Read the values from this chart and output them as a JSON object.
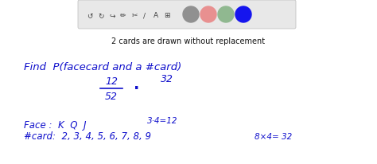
{
  "bg_color": "#ffffff",
  "toolbar_bg": "#e8e8e8",
  "text_color_black": "#111111",
  "text_color_blue": "#1010cc",
  "circle_colors": [
    "#909090",
    "#e89090",
    "#90b890",
    "#1515ee"
  ],
  "line1": "2 cards are drawn without replacement",
  "find_text": "Find  P(facecard and a #card)",
  "frac_num": "12",
  "frac_den": "52",
  "num32_text": "32",
  "dot_text": ".",
  "face_label": "Face :  K  Q  J",
  "face_calc": "3·4=12",
  "card_label": "#card:  2, 3, 4, 5, 6, 7, 8, 9",
  "card_calc": "8×4= 32"
}
